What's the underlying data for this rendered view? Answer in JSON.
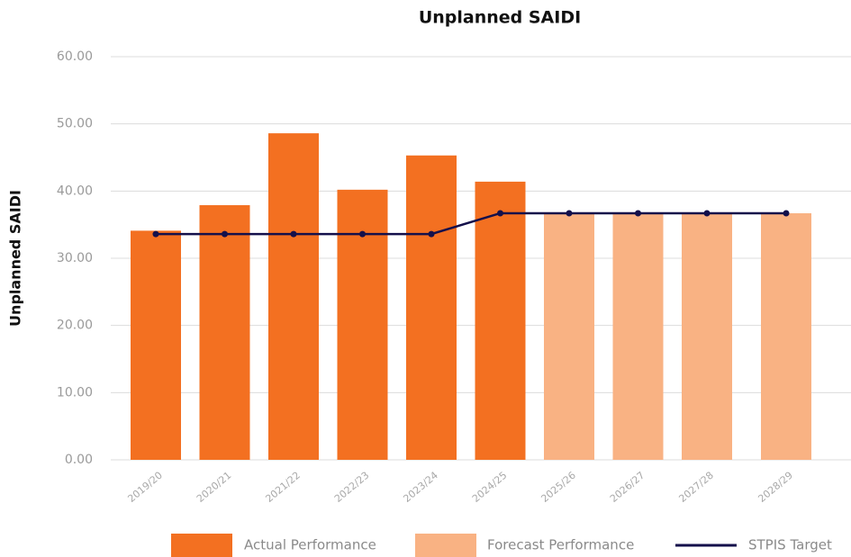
{
  "chart_data": {
    "type": "bar",
    "title": "Unplanned SAIDI",
    "y_label": "Unplanned SAIDI",
    "categories": [
      "2019/20",
      "2020/21",
      "2021/22",
      "2022/23",
      "2023/24",
      "2024/25",
      "2025/26",
      "2026/27",
      "2027/28",
      "2028/29"
    ],
    "series": [
      {
        "name": "Actual Performance",
        "type": "bar",
        "color": "#f37021",
        "values": [
          34.1,
          37.9,
          48.6,
          40.2,
          45.3,
          41.4,
          null,
          null,
          null,
          null
        ]
      },
      {
        "name": "Forecast Performance",
        "type": "bar",
        "color": "#f9b283",
        "values": [
          null,
          null,
          null,
          null,
          null,
          null,
          36.7,
          36.7,
          36.7,
          36.7
        ]
      },
      {
        "name": "STPIS Target",
        "type": "line",
        "color": "#14104b",
        "values": [
          33.6,
          33.6,
          33.6,
          33.6,
          33.6,
          36.7,
          36.7,
          36.7,
          36.7,
          36.7
        ]
      }
    ],
    "ylim": [
      0,
      60
    ],
    "yticks": [
      {
        "value": 0,
        "label": "0.00"
      },
      {
        "value": 10,
        "label": "10.00"
      },
      {
        "value": 20,
        "label": "20.00"
      },
      {
        "value": 30,
        "label": "30.00"
      },
      {
        "value": 40,
        "label": "40.00"
      },
      {
        "value": 50,
        "label": "50.00"
      },
      {
        "value": 60,
        "label": "60.00"
      }
    ],
    "grid": true,
    "legend": "bottom"
  }
}
